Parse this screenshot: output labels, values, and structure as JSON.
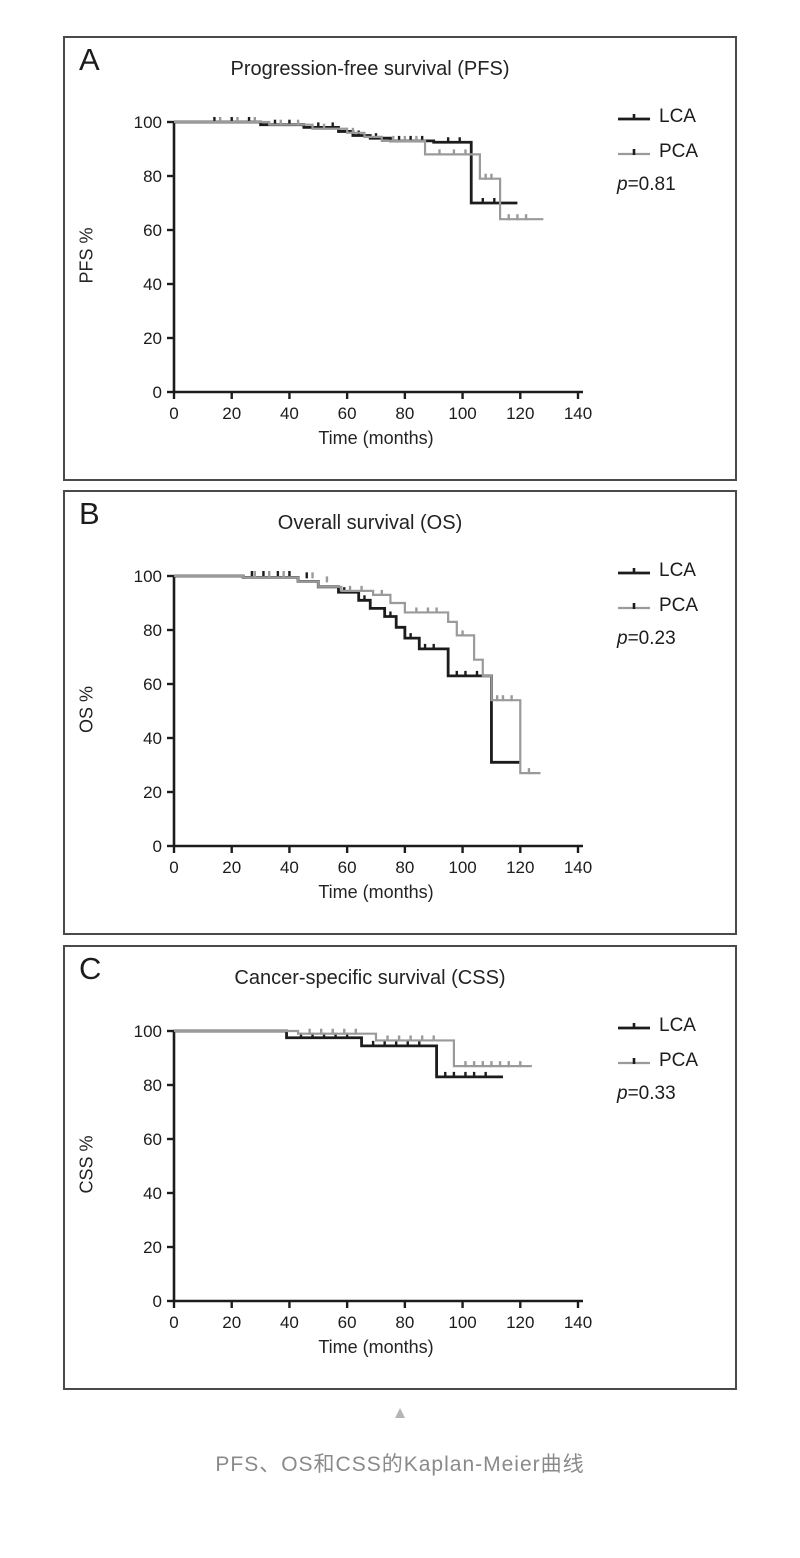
{
  "figure": {
    "caption": "PFS、OS和CSS的Kaplan-Meier曲线",
    "collapse_indicator": "▲"
  },
  "colors": {
    "lca": "#1c1c1c",
    "pca": "#9a9a9a",
    "panel_border": "#4a4a4a",
    "caption_text": "#8a8a8a"
  },
  "chart_data": [
    {
      "panel": "A",
      "type": "line",
      "subtype": "kaplan-meier-step",
      "title": "Progression-free survival (PFS)",
      "xlabel": "Time (months)",
      "ylabel": "PFS %",
      "xlim": [
        0,
        140
      ],
      "ylim": [
        0,
        100
      ],
      "xticks": [
        0,
        20,
        40,
        60,
        80,
        100,
        120,
        140
      ],
      "yticks": [
        0,
        20,
        40,
        60,
        80,
        100
      ],
      "grid": false,
      "legend_position": "right",
      "p_label": "p",
      "p_value": "=0.81",
      "series": [
        {
          "name": "LCA",
          "color": "#1c1c1c",
          "points": [
            [
              0,
              100
            ],
            [
              30,
              100
            ],
            [
              30,
              99
            ],
            [
              45,
              99
            ],
            [
              45,
              98
            ],
            [
              57,
              98
            ],
            [
              57,
              96.5
            ],
            [
              62,
              96.5
            ],
            [
              62,
              95
            ],
            [
              68,
              95
            ],
            [
              68,
              94
            ],
            [
              75,
              94
            ],
            [
              75,
              93
            ],
            [
              90,
              93
            ],
            [
              90,
              92.5
            ],
            [
              103,
              92.5
            ],
            [
              103,
              70
            ],
            [
              119,
              70
            ]
          ],
          "censor_marks": [
            [
              14,
              100
            ],
            [
              20,
              100
            ],
            [
              26,
              100
            ],
            [
              35,
              99
            ],
            [
              40,
              99
            ],
            [
              50,
              98
            ],
            [
              55,
              98
            ],
            [
              64,
              95
            ],
            [
              70,
              94
            ],
            [
              78,
              93
            ],
            [
              82,
              93
            ],
            [
              86,
              93
            ],
            [
              95,
              92.5
            ],
            [
              99,
              92.5
            ],
            [
              107,
              70
            ],
            [
              111,
              70
            ]
          ]
        },
        {
          "name": "PCA",
          "color": "#9a9a9a",
          "points": [
            [
              0,
              100
            ],
            [
              33,
              100
            ],
            [
              33,
              99
            ],
            [
              48,
              99
            ],
            [
              48,
              97.5
            ],
            [
              60,
              97.5
            ],
            [
              60,
              96
            ],
            [
              66,
              96
            ],
            [
              66,
              94.5
            ],
            [
              72,
              94.5
            ],
            [
              72,
              93
            ],
            [
              87,
              93
            ],
            [
              87,
              88
            ],
            [
              106,
              88
            ],
            [
              106,
              79
            ],
            [
              113,
              79
            ],
            [
              113,
              64
            ],
            [
              128,
              64
            ]
          ],
          "censor_marks": [
            [
              16,
              100
            ],
            [
              22,
              100
            ],
            [
              28,
              100
            ],
            [
              37,
              99
            ],
            [
              43,
              99
            ],
            [
              52,
              97.5
            ],
            [
              62,
              96
            ],
            [
              76,
              93
            ],
            [
              80,
              93
            ],
            [
              84,
              93
            ],
            [
              92,
              88
            ],
            [
              97,
              88
            ],
            [
              101,
              88
            ],
            [
              108,
              79
            ],
            [
              110,
              79
            ],
            [
              116,
              64
            ],
            [
              119,
              64
            ],
            [
              122,
              64
            ]
          ]
        }
      ]
    },
    {
      "panel": "B",
      "type": "line",
      "subtype": "kaplan-meier-step",
      "title": "Overall survival (OS)",
      "xlabel": "Time (months)",
      "ylabel": "OS %",
      "xlim": [
        0,
        140
      ],
      "ylim": [
        0,
        100
      ],
      "xticks": [
        0,
        20,
        40,
        60,
        80,
        100,
        120,
        140
      ],
      "yticks": [
        0,
        20,
        40,
        60,
        80,
        100
      ],
      "grid": false,
      "legend_position": "right",
      "p_label": "p",
      "p_value": "=0.23",
      "series": [
        {
          "name": "LCA",
          "color": "#1c1c1c",
          "points": [
            [
              0,
              100
            ],
            [
              24,
              100
            ],
            [
              24,
              99.5
            ],
            [
              43,
              99.5
            ],
            [
              43,
              98
            ],
            [
              50,
              98
            ],
            [
              50,
              96
            ],
            [
              57,
              96
            ],
            [
              57,
              94
            ],
            [
              64,
              94
            ],
            [
              64,
              91
            ],
            [
              68,
              91
            ],
            [
              68,
              88
            ],
            [
              73,
              88
            ],
            [
              73,
              85
            ],
            [
              77,
              85
            ],
            [
              77,
              81
            ],
            [
              80,
              81
            ],
            [
              80,
              77
            ],
            [
              85,
              77
            ],
            [
              85,
              73
            ],
            [
              95,
              73
            ],
            [
              95,
              63
            ],
            [
              110,
              63
            ],
            [
              110,
              31
            ],
            [
              120,
              31
            ]
          ],
          "censor_marks": [
            [
              27,
              100
            ],
            [
              31,
              100
            ],
            [
              36,
              100
            ],
            [
              40,
              100
            ],
            [
              46,
              99.5
            ],
            [
              59,
              94
            ],
            [
              66,
              91
            ],
            [
              75,
              85
            ],
            [
              82,
              77
            ],
            [
              87,
              73
            ],
            [
              90,
              73
            ],
            [
              98,
              63
            ],
            [
              101,
              63
            ],
            [
              105,
              63
            ]
          ]
        },
        {
          "name": "PCA",
          "color": "#9a9a9a",
          "points": [
            [
              0,
              100
            ],
            [
              24,
              100
            ],
            [
              24,
              99.5
            ],
            [
              43,
              99.5
            ],
            [
              43,
              98
            ],
            [
              50,
              98
            ],
            [
              50,
              96
            ],
            [
              58,
              96
            ],
            [
              58,
              94.5
            ],
            [
              69,
              94.5
            ],
            [
              69,
              93
            ],
            [
              75,
              93
            ],
            [
              75,
              90
            ],
            [
              80,
              90
            ],
            [
              80,
              86.5
            ],
            [
              95,
              86.5
            ],
            [
              95,
              83
            ],
            [
              98,
              83
            ],
            [
              98,
              78
            ],
            [
              104,
              78
            ],
            [
              104,
              69
            ],
            [
              107,
              69
            ],
            [
              107,
              63
            ],
            [
              110,
              63
            ],
            [
              110,
              54
            ],
            [
              120,
              54
            ],
            [
              120,
              27
            ],
            [
              127,
              27
            ]
          ],
          "censor_marks": [
            [
              28,
              100
            ],
            [
              33,
              100
            ],
            [
              38,
              100
            ],
            [
              48,
              99.5
            ],
            [
              53,
              98
            ],
            [
              61,
              94.5
            ],
            [
              65,
              94.5
            ],
            [
              72,
              93
            ],
            [
              84,
              86.5
            ],
            [
              88,
              86.5
            ],
            [
              91,
              86.5
            ],
            [
              100,
              78
            ],
            [
              112,
              54
            ],
            [
              114,
              54
            ],
            [
              117,
              54
            ],
            [
              123,
              27
            ]
          ]
        }
      ]
    },
    {
      "panel": "C",
      "type": "line",
      "subtype": "kaplan-meier-step",
      "title": "Cancer-specific survival (CSS)",
      "xlabel": "Time (months)",
      "ylabel": "CSS %",
      "xlim": [
        0,
        140
      ],
      "ylim": [
        0,
        100
      ],
      "xticks": [
        0,
        20,
        40,
        60,
        80,
        100,
        120,
        140
      ],
      "yticks": [
        0,
        20,
        40,
        60,
        80,
        100
      ],
      "grid": false,
      "legend_position": "right",
      "p_label": "p",
      "p_value": "=0.33",
      "series": [
        {
          "name": "LCA",
          "color": "#1c1c1c",
          "points": [
            [
              0,
              100
            ],
            [
              39,
              100
            ],
            [
              39,
              97.5
            ],
            [
              65,
              97.5
            ],
            [
              65,
              94.5
            ],
            [
              91,
              94.5
            ],
            [
              91,
              83
            ],
            [
              114,
              83
            ]
          ],
          "censor_marks": [
            [
              44,
              97.5
            ],
            [
              48,
              97.5
            ],
            [
              52,
              97.5
            ],
            [
              56,
              97.5
            ],
            [
              60,
              97.5
            ],
            [
              69,
              94.5
            ],
            [
              73,
              94.5
            ],
            [
              77,
              94.5
            ],
            [
              81,
              94.5
            ],
            [
              85,
              94.5
            ],
            [
              94,
              83
            ],
            [
              97,
              83
            ],
            [
              101,
              83
            ],
            [
              104,
              83
            ],
            [
              108,
              83
            ]
          ]
        },
        {
          "name": "PCA",
          "color": "#9a9a9a",
          "points": [
            [
              0,
              100
            ],
            [
              43,
              100
            ],
            [
              43,
              99
            ],
            [
              70,
              99
            ],
            [
              70,
              96.5
            ],
            [
              97,
              96.5
            ],
            [
              97,
              87
            ],
            [
              124,
              87
            ]
          ],
          "censor_marks": [
            [
              47,
              99
            ],
            [
              51,
              99
            ],
            [
              55,
              99
            ],
            [
              59,
              99
            ],
            [
              63,
              99
            ],
            [
              74,
              96.5
            ],
            [
              78,
              96.5
            ],
            [
              82,
              96.5
            ],
            [
              86,
              96.5
            ],
            [
              90,
              96.5
            ],
            [
              101,
              87
            ],
            [
              104,
              87
            ],
            [
              107,
              87
            ],
            [
              110,
              87
            ],
            [
              113,
              87
            ],
            [
              116,
              87
            ],
            [
              120,
              87
            ]
          ]
        }
      ]
    }
  ]
}
